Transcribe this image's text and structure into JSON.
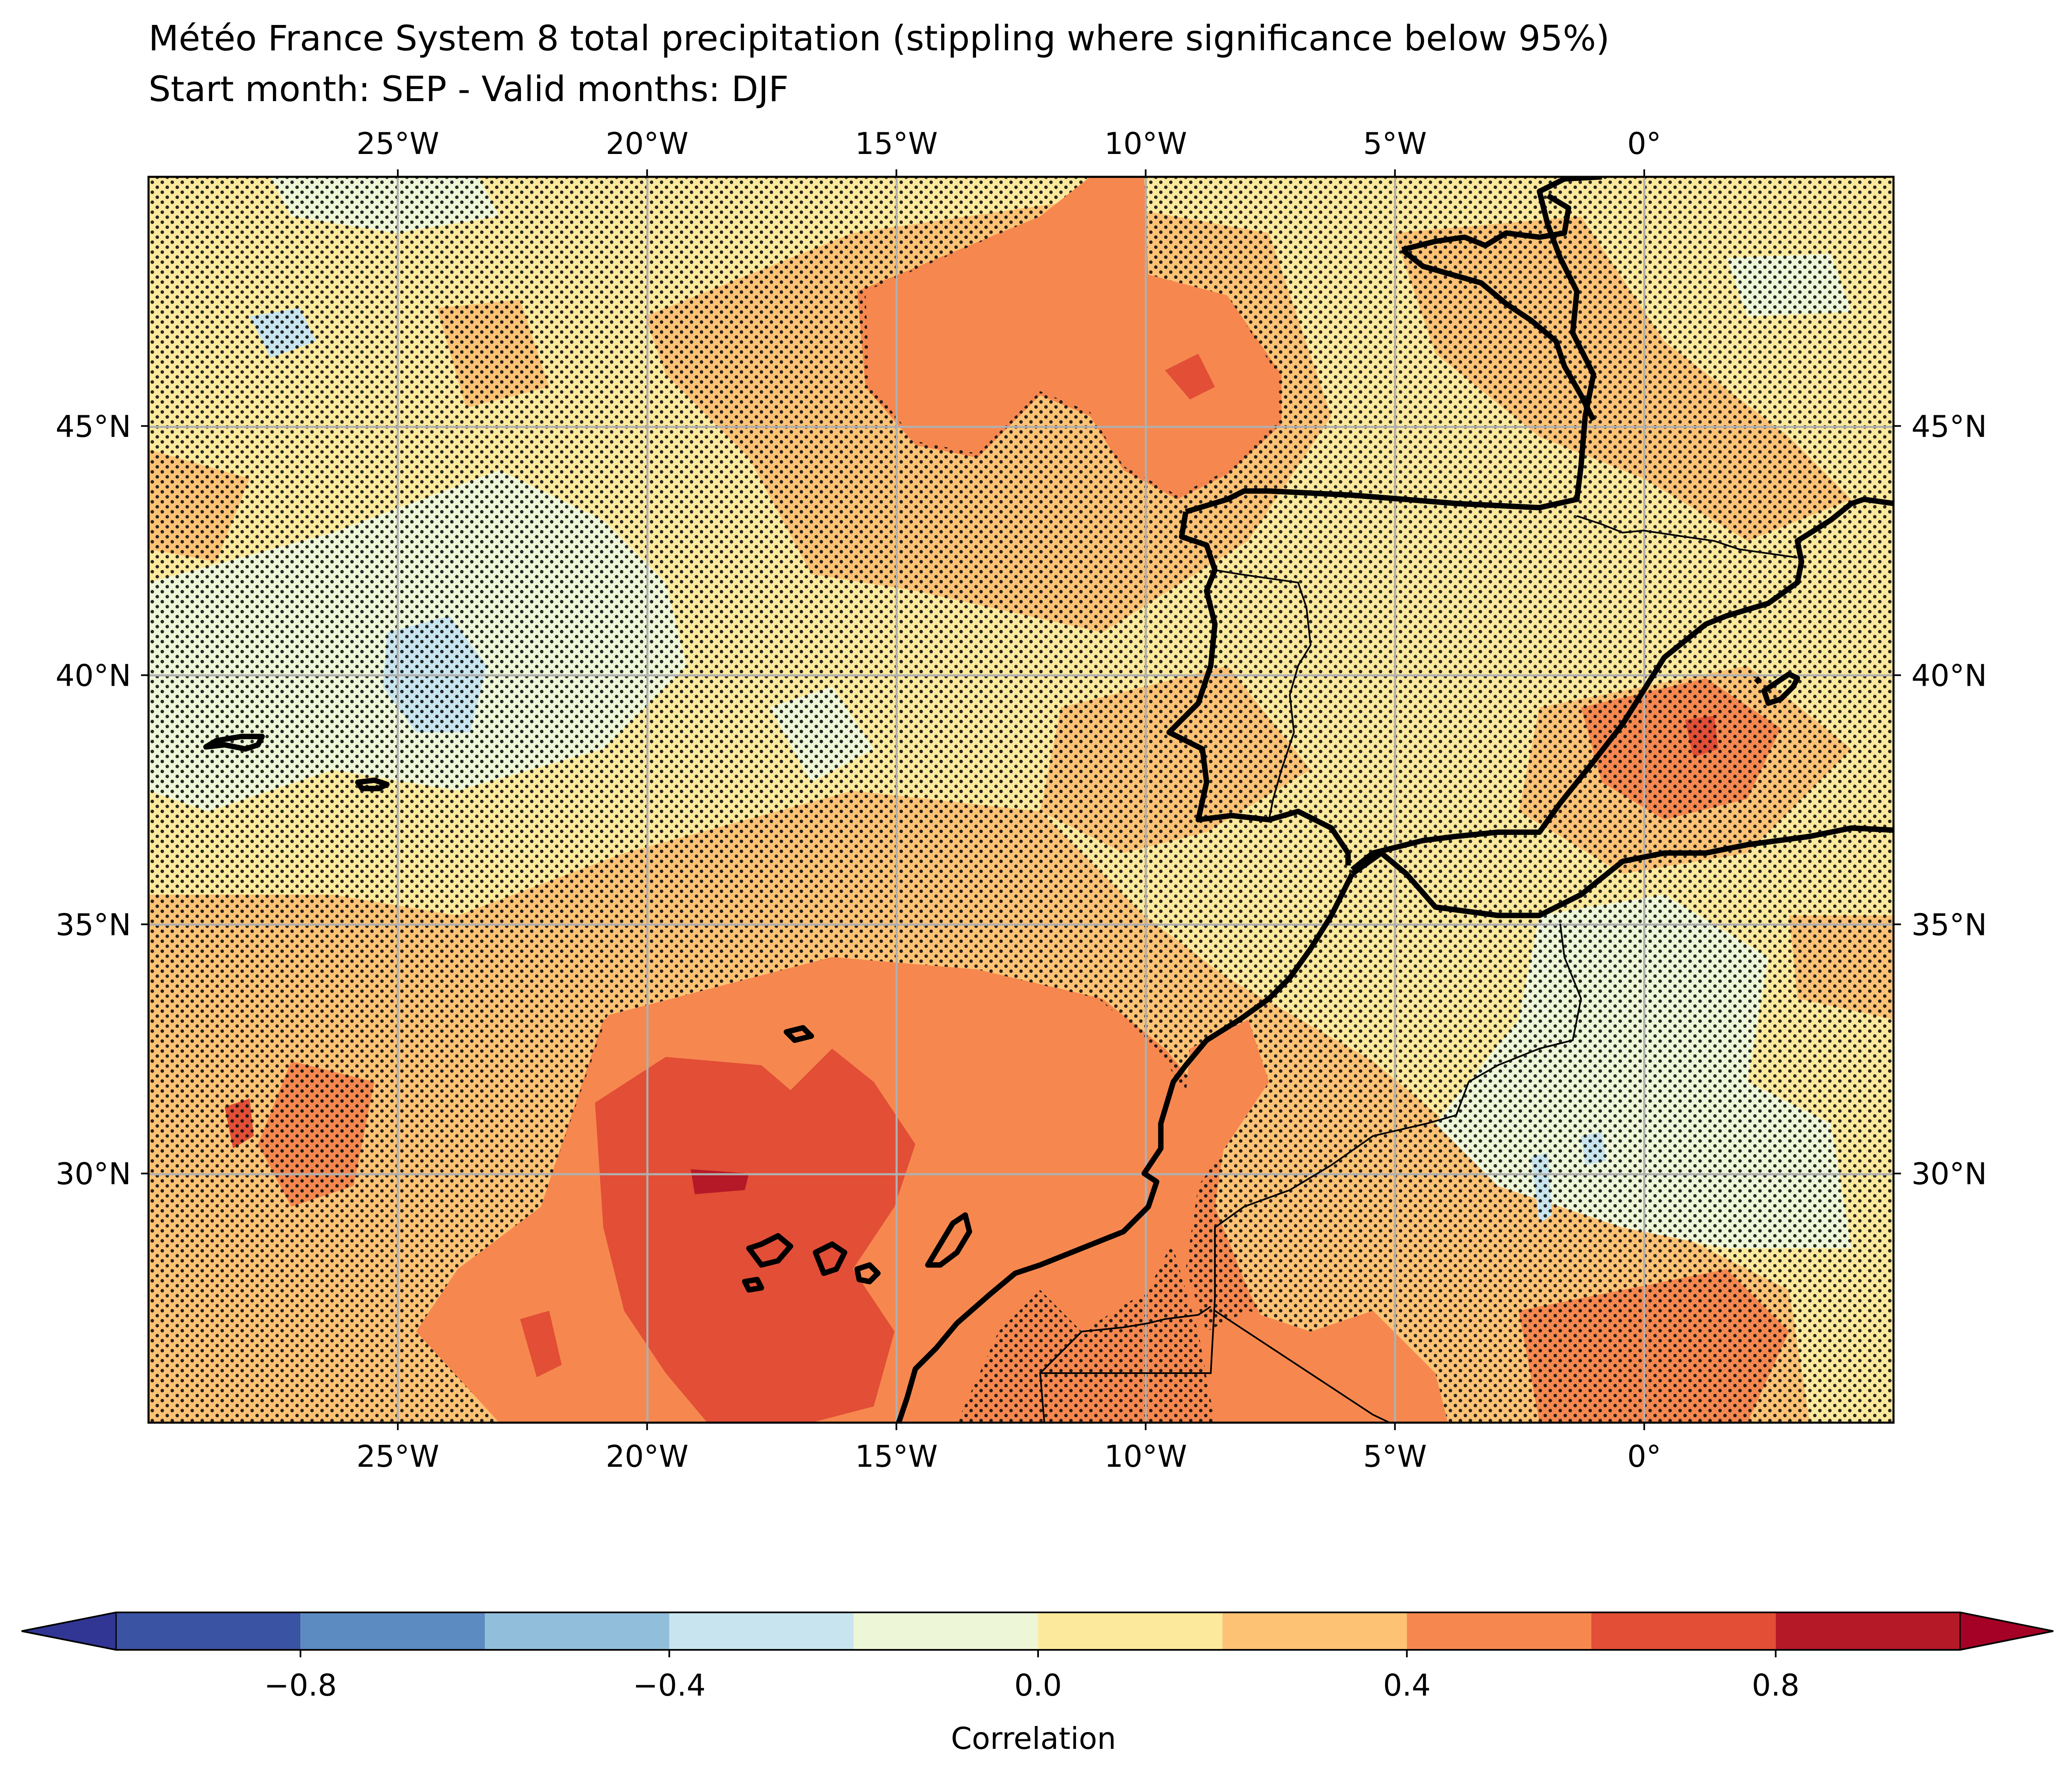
{
  "title": {
    "line1": "Météo France System 8 total precipitation (stippling where significance below 95%)",
    "line2": "Start month: SEP - Valid months: DJF"
  },
  "map": {
    "lon_range": [
      -30,
      5
    ],
    "lat_range": [
      25,
      50
    ],
    "lon_ticks": [
      {
        "value": -25,
        "label": "25°W"
      },
      {
        "value": -20,
        "label": "20°W"
      },
      {
        "value": -15,
        "label": "15°W"
      },
      {
        "value": -10,
        "label": "10°W"
      },
      {
        "value": -5,
        "label": "5°W"
      },
      {
        "value": 0,
        "label": "0°"
      }
    ],
    "lat_ticks": [
      {
        "value": 45,
        "label": "45°N"
      },
      {
        "value": 40,
        "label": "40°N"
      },
      {
        "value": 35,
        "label": "35°N"
      },
      {
        "value": 30,
        "label": "30°N"
      }
    ],
    "gridlines": true,
    "stippling": "significance below 95%"
  },
  "colorbar": {
    "label": "Correlation",
    "range": [
      -1,
      1
    ],
    "extend": "both",
    "bin_edges": [
      -1.0,
      -0.8,
      -0.6,
      -0.4,
      -0.2,
      0.0,
      0.2,
      0.4,
      0.6,
      0.8,
      1.0
    ],
    "colors": [
      "#3b53a3",
      "#5b8bc0",
      "#91bfdb",
      "#c8e5ef",
      "#eef6d8",
      "#fde99c",
      "#fdc274",
      "#f6884f",
      "#e24e36",
      "#b51927"
    ],
    "under_color": "#313695",
    "over_color": "#a50026",
    "tick_values": [
      -0.8,
      -0.4,
      0.0,
      0.4,
      0.8
    ],
    "tick_labels": [
      "−0.8",
      "−0.4",
      "0.0",
      "0.4",
      "0.8"
    ]
  }
}
